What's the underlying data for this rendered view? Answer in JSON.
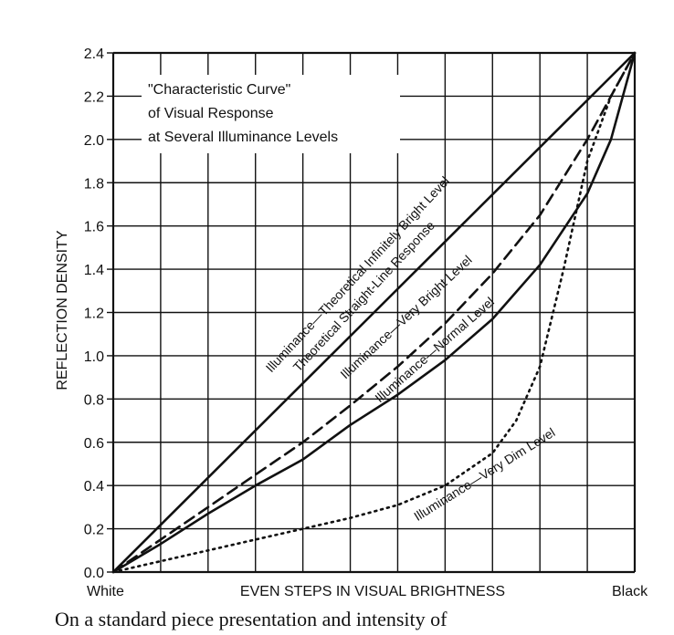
{
  "chart_data": {
    "type": "line",
    "title": [
      "\"Characteristic Curve\"",
      "of Visual Response",
      "at Several Illuminance Levels"
    ],
    "xlabel": "EVEN STEPS IN VISUAL BRIGHTNESS",
    "ylabel": "REFLECTION DENSITY",
    "x_end_labels": [
      "White",
      "Black"
    ],
    "x_steps": 11,
    "xlim": [
      0,
      11
    ],
    "ylim": [
      0,
      2.4
    ],
    "yticks": [
      "0.0",
      "0.2",
      "0.4",
      "0.6",
      "0.8",
      "1.0",
      "1.2",
      "1.4",
      "1.6",
      "1.8",
      "2.0",
      "2.2",
      "2.4"
    ],
    "grid": true,
    "series": [
      {
        "name": "Illuminance—Theoretical Infinitely Bright Level",
        "style": "solid",
        "x": [
          0,
          11
        ],
        "y": [
          0,
          2.4
        ]
      },
      {
        "name": "Theoretical Straight-Line Response",
        "style": "solid",
        "x": [
          0,
          11
        ],
        "y": [
          0,
          2.4
        ]
      },
      {
        "name": "Illuminance—Very Bright Level",
        "style": "dashed",
        "x": [
          0,
          1,
          2,
          3,
          4,
          5,
          6,
          7,
          8,
          9,
          10,
          11
        ],
        "y": [
          0,
          0.15,
          0.3,
          0.45,
          0.6,
          0.77,
          0.95,
          1.15,
          1.38,
          1.65,
          2.0,
          2.4
        ]
      },
      {
        "name": "Illuminance—Normal Level",
        "style": "solid",
        "x": [
          0,
          1,
          2,
          3,
          4,
          5,
          6,
          7,
          8,
          9,
          10,
          10.5,
          11
        ],
        "y": [
          0,
          0.13,
          0.27,
          0.4,
          0.52,
          0.68,
          0.82,
          0.98,
          1.17,
          1.42,
          1.75,
          2.0,
          2.4
        ]
      },
      {
        "name": "Illuminance—Very Dim Level",
        "style": "dotted",
        "x": [
          0,
          1,
          2,
          3,
          4,
          5,
          6,
          7,
          8,
          8.5,
          9,
          9.5,
          10,
          10.5,
          11
        ],
        "y": [
          0,
          0.05,
          0.1,
          0.15,
          0.2,
          0.25,
          0.31,
          0.4,
          0.55,
          0.7,
          0.95,
          1.4,
          1.9,
          2.2,
          2.4
        ]
      }
    ]
  },
  "caption": "On a standard piece presentation and intensity of"
}
